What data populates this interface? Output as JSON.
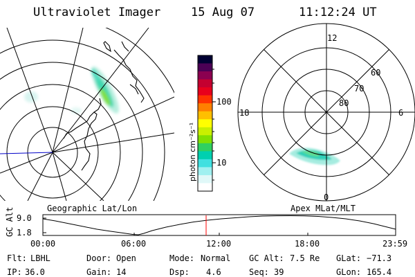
{
  "header": {
    "instrument": "Ultraviolet Imager",
    "date": "15 Aug 07",
    "time": "11:12:24 UT"
  },
  "geographic_panel": {
    "label": "Geographic Lat/Lon"
  },
  "colorbar": {
    "unit_label": "photon cm⁻²s⁻¹",
    "ticks": [
      "100",
      "10"
    ],
    "colors": [
      "#000033",
      "#4b0055",
      "#8b0050",
      "#c40030",
      "#e8001c",
      "#ff3300",
      "#ff7f00",
      "#ffbf00",
      "#ffff00",
      "#c8f000",
      "#80e000",
      "#30d060",
      "#00d0b0",
      "#40e0e0",
      "#a0f0f0",
      "#e0f8f8",
      "#ffffff"
    ]
  },
  "polar_panel": {
    "label": "Apex MLat/MLT",
    "mlt_labels": {
      "top": "12",
      "left": "18",
      "right": "6",
      "bottom": "0"
    },
    "mlat_labels": [
      "60",
      "70",
      "80"
    ]
  },
  "altitude_plot": {
    "ylabel": "GC Alt",
    "yticks": [
      "9.0",
      "1.8"
    ],
    "xticks": [
      "00:00",
      "06:00",
      "12:00",
      "18:00",
      "23:59"
    ],
    "marker_time": "11:12",
    "marker_color": "#ff0000"
  },
  "status": {
    "row1": [
      {
        "key": "Flt:",
        "value": "LBHL"
      },
      {
        "key": "Door:",
        "value": "Open"
      },
      {
        "key": "Mode:",
        "value": "Normal"
      },
      {
        "key": "GC Alt:",
        "value": "7.5 Re"
      },
      {
        "key": "GLat:",
        "value": "−71.3"
      }
    ],
    "row2": [
      {
        "key": "IP:",
        "value": "36.0"
      },
      {
        "key": "Gain:",
        "value": "14"
      },
      {
        "key": "Dsp:",
        "value": "4.6"
      },
      {
        "key": "Seq:",
        "value": "39"
      },
      {
        "key": "GLon:",
        "value": "165.4"
      }
    ]
  }
}
